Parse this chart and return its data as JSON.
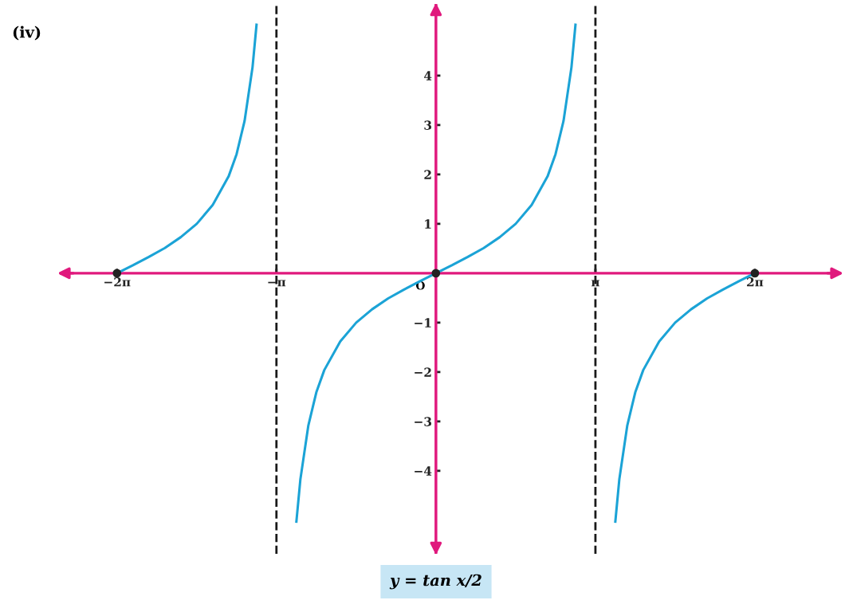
{
  "chart_data": {
    "type": "line",
    "title": "(iv)",
    "annotations": [
      "y = tan x/2",
      {
        "text": "O",
        "x": 0,
        "y": 0
      }
    ],
    "xlim": [
      -7.41,
      7.98
    ],
    "ylim": [
      -5.68,
      5.45
    ],
    "xticks": [
      {
        "value": -6.283,
        "label": "−2π"
      },
      {
        "value": -3.142,
        "label": "−π"
      },
      {
        "value": 3.142,
        "label": "π"
      },
      {
        "value": 6.283,
        "label": "2π"
      }
    ],
    "yticks": [
      {
        "value": -4,
        "label": "−4"
      },
      {
        "value": -3,
        "label": "−3"
      },
      {
        "value": -2,
        "label": "−2"
      },
      {
        "value": -1,
        "label": "−1"
      },
      1,
      2,
      3,
      4
    ],
    "grid": false,
    "legend": false,
    "ref_lines": [
      {
        "axis": "x",
        "value": -3.142,
        "color": "#1a1a1a",
        "line_style": "dashed"
      },
      {
        "axis": "x",
        "value": 3.142,
        "color": "#1a1a1a",
        "line_style": "dashed"
      }
    ],
    "series": [
      {
        "color": "#1ba3d6",
        "x": [
          -6.283,
          -5.969,
          -5.655,
          -5.341,
          -5.027,
          -4.712,
          -4.398,
          -4.084,
          -3.927,
          -3.77,
          -3.613,
          -3.534
        ],
        "values": [
          0,
          0.16,
          0.33,
          0.51,
          0.73,
          1,
          1.38,
          1.96,
          2.41,
          3.08,
          4.17,
          5.03
        ]
      },
      {
        "color": "#1ba3d6",
        "x": [
          -2.749,
          -2.67,
          -2.513,
          -2.356,
          -2.199,
          -1.885,
          -1.571,
          -1.257,
          -0.942,
          -0.628,
          -0.314,
          0,
          0.314,
          0.628,
          0.942,
          1.257,
          1.571,
          1.885,
          2.199,
          2.356,
          2.513,
          2.67,
          2.749
        ],
        "values": [
          -5.03,
          -4.17,
          -3.08,
          -2.41,
          -1.96,
          -1.38,
          -1,
          -0.73,
          -0.51,
          -0.33,
          -0.16,
          0,
          0.16,
          0.33,
          0.51,
          0.73,
          1,
          1.38,
          1.96,
          2.41,
          3.08,
          4.17,
          5.03
        ]
      },
      {
        "color": "#1ba3d6",
        "x": [
          3.534,
          3.613,
          3.77,
          3.927,
          4.084,
          4.398,
          4.712,
          5.027,
          5.341,
          5.655,
          5.969,
          6.283
        ],
        "values": [
          -5.03,
          -4.17,
          -3.08,
          -2.41,
          -1.96,
          -1.38,
          -1,
          -0.73,
          -0.51,
          -0.33,
          -0.16,
          0
        ]
      },
      {
        "type": "scatter",
        "color": "#222222",
        "marker": "circle",
        "x": [
          -6.283,
          0,
          6.283
        ],
        "values": [
          0,
          0,
          0
        ]
      }
    ]
  }
}
